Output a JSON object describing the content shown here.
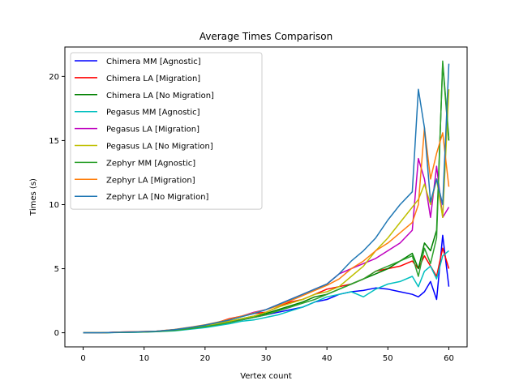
{
  "chart_data": {
    "type": "line",
    "title": "Average Times Comparison",
    "xlabel": "Vertex count",
    "ylabel": "Times (s)",
    "xlim": [
      -3,
      63
    ],
    "ylim": [
      -1.1,
      22.3
    ],
    "xticks": [
      0,
      10,
      20,
      30,
      40,
      50,
      60
    ],
    "yticks": [
      0,
      5,
      10,
      15,
      20
    ],
    "grid": false,
    "legend_position": "top-left",
    "x_points": [
      0,
      3,
      6,
      9,
      12,
      15,
      18,
      20,
      22,
      24,
      26,
      28,
      30,
      32,
      34,
      36,
      38,
      40,
      42,
      44,
      46,
      48,
      50,
      52,
      54,
      55,
      56,
      57,
      58,
      59,
      60
    ],
    "series": [
      {
        "name": "Chimera MM [Agnostic]",
        "color": "#0000ff",
        "values": [
          0,
          0,
          0.03,
          0.05,
          0.1,
          0.2,
          0.4,
          0.5,
          0.7,
          0.9,
          1.0,
          1.2,
          1.4,
          1.6,
          1.8,
          2.0,
          2.4,
          2.6,
          3.0,
          3.2,
          3.3,
          3.5,
          3.4,
          3.2,
          3.0,
          2.8,
          3.2,
          4.0,
          2.6,
          7.6,
          3.6
        ]
      },
      {
        "name": "Chimera LA [Migration]",
        "color": "#ff0000",
        "values": [
          0,
          0,
          0.05,
          0.08,
          0.12,
          0.25,
          0.45,
          0.6,
          0.8,
          1.1,
          1.3,
          1.5,
          1.6,
          2.0,
          2.4,
          2.6,
          3.0,
          3.4,
          3.6,
          3.8,
          4.2,
          4.8,
          5.0,
          5.2,
          5.6,
          5.0,
          6.0,
          5.2,
          4.4,
          6.6,
          5.0
        ]
      },
      {
        "name": "Chimera LA [No Migration]",
        "color": "#008000",
        "values": [
          0,
          0,
          0.04,
          0.06,
          0.1,
          0.22,
          0.4,
          0.55,
          0.7,
          0.9,
          1.1,
          1.3,
          1.5,
          1.8,
          2.1,
          2.4,
          2.8,
          3.0,
          3.4,
          3.8,
          4.2,
          4.6,
          5.0,
          5.6,
          6.2,
          5.0,
          7.0,
          6.4,
          8.0,
          21.0,
          15.0
        ]
      },
      {
        "name": "Pegasus MM [Agnostic]",
        "color": "#00bfbf",
        "values": [
          0,
          0,
          0.02,
          0.04,
          0.08,
          0.15,
          0.3,
          0.4,
          0.55,
          0.7,
          0.9,
          1.0,
          1.2,
          1.4,
          1.7,
          2.0,
          2.4,
          2.8,
          3.0,
          3.2,
          2.8,
          3.4,
          3.8,
          4.0,
          4.4,
          3.6,
          4.8,
          5.2,
          4.2,
          6.0,
          6.4
        ]
      },
      {
        "name": "Pegasus LA [Migration]",
        "color": "#bf00bf",
        "values": [
          0,
          0,
          0.05,
          0.07,
          0.12,
          0.24,
          0.42,
          0.6,
          0.8,
          1.0,
          1.3,
          1.6,
          1.8,
          2.2,
          2.6,
          3.0,
          3.4,
          3.8,
          4.6,
          5.0,
          5.4,
          5.8,
          6.4,
          7.0,
          8.0,
          13.6,
          12.0,
          9.0,
          13.0,
          9.0,
          9.8
        ]
      },
      {
        "name": "Pegasus LA [No Migration]",
        "color": "#bfbf00",
        "values": [
          0,
          0,
          0.04,
          0.06,
          0.1,
          0.2,
          0.4,
          0.5,
          0.7,
          0.9,
          1.1,
          1.3,
          1.6,
          2.0,
          2.3,
          2.6,
          3.0,
          3.2,
          3.6,
          4.4,
          5.2,
          6.4,
          7.4,
          8.6,
          9.8,
          10.4,
          11.6,
          10.0,
          12.0,
          9.0,
          19.0
        ]
      },
      {
        "name": "Zephyr MM [Agnostic]",
        "color": "#2ca02c",
        "values": [
          0,
          0,
          0.03,
          0.05,
          0.09,
          0.18,
          0.35,
          0.48,
          0.62,
          0.8,
          1.0,
          1.2,
          1.4,
          1.7,
          2.0,
          2.3,
          2.6,
          3.0,
          3.4,
          3.8,
          4.2,
          4.8,
          5.2,
          5.6,
          6.0,
          4.4,
          6.6,
          5.4,
          7.4,
          21.2,
          15.2
        ]
      },
      {
        "name": "Zephyr LA [Migration]",
        "color": "#ff7f0e",
        "values": [
          0,
          0,
          0.05,
          0.08,
          0.13,
          0.26,
          0.46,
          0.62,
          0.82,
          1.05,
          1.3,
          1.55,
          1.8,
          2.1,
          2.5,
          2.9,
          3.3,
          3.7,
          4.2,
          5.0,
          5.6,
          6.4,
          7.0,
          7.8,
          8.6,
          10.0,
          16.0,
          12.0,
          14.0,
          15.6,
          11.4
        ]
      },
      {
        "name": "Zephyr LA [No Migration]",
        "color": "#1f77b4",
        "values": [
          0,
          0,
          0.04,
          0.07,
          0.12,
          0.25,
          0.44,
          0.6,
          0.8,
          1.0,
          1.25,
          1.5,
          1.8,
          2.2,
          2.6,
          3.0,
          3.4,
          3.8,
          4.6,
          5.6,
          6.4,
          7.4,
          8.8,
          10.0,
          11.0,
          19.0,
          16.0,
          10.2,
          12.0,
          10.0,
          21.0
        ]
      }
    ]
  }
}
